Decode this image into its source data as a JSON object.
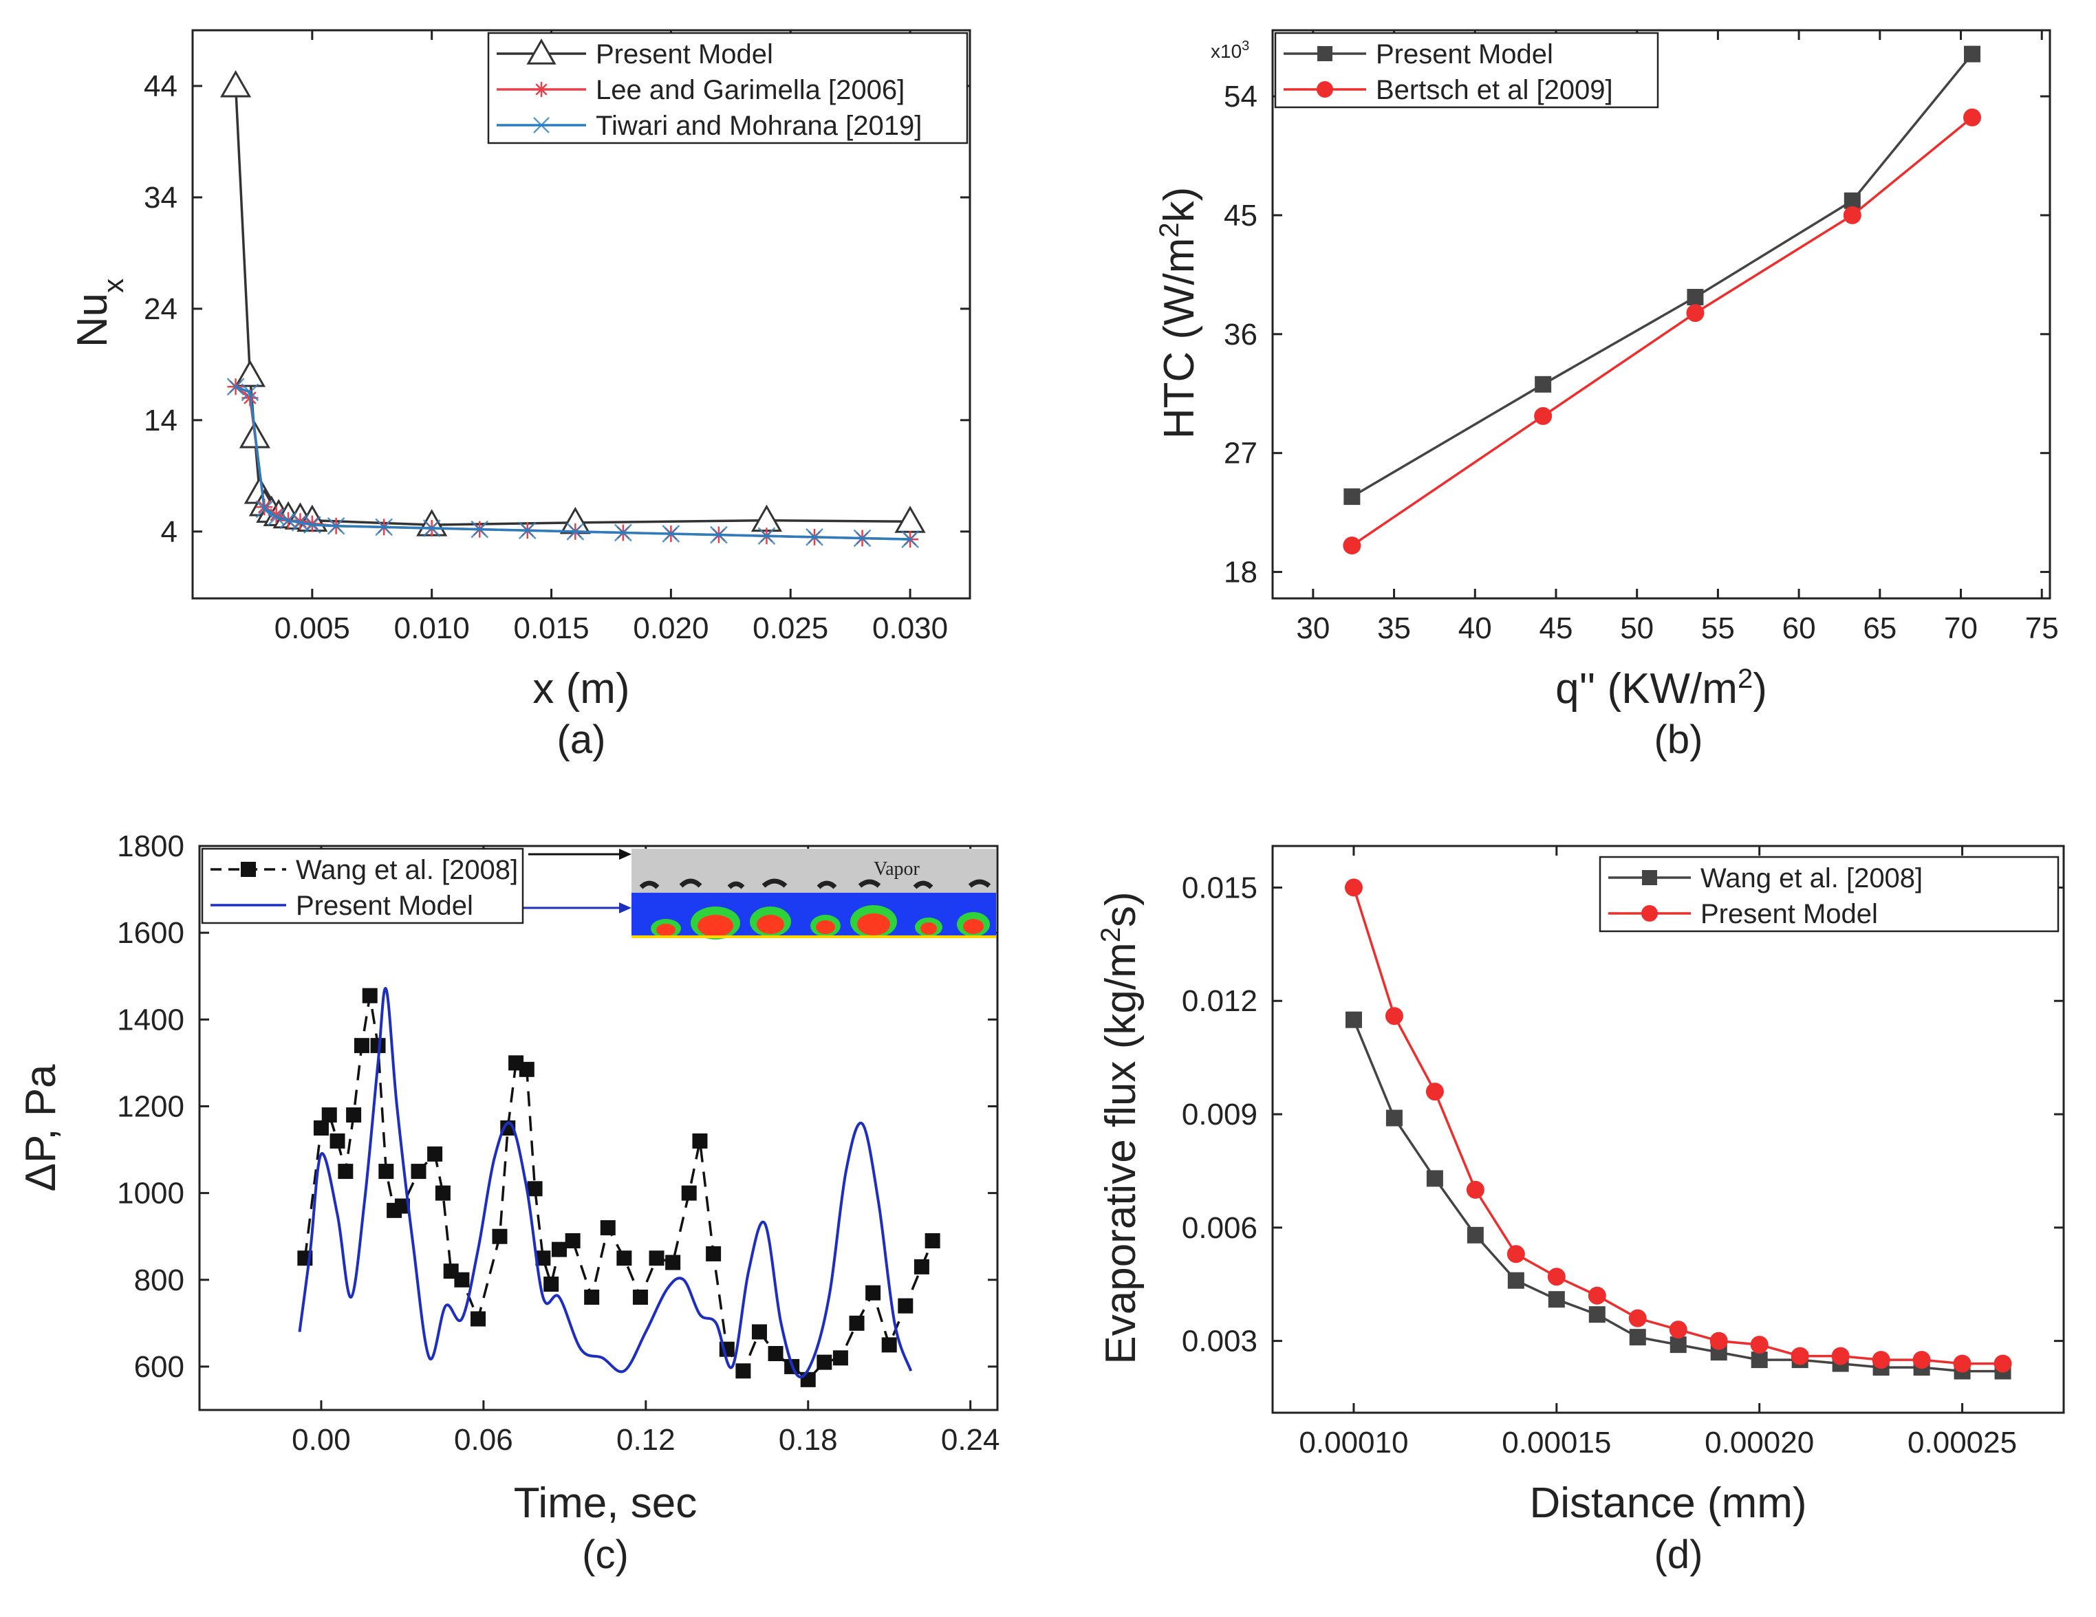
{
  "chart_data": [
    {
      "id": "a",
      "type": "line",
      "panel_label": "(a)",
      "xlabel": "x (m)",
      "ylabel": "Nu",
      "ylabel_sub": "x",
      "xlim": [
        0.0,
        0.0325
      ],
      "ylim": [
        -2,
        49
      ],
      "xticks": [
        0.005,
        0.01,
        0.015,
        0.02,
        0.025,
        0.03
      ],
      "xtick_labels": [
        "0.005",
        "0.010",
        "0.015",
        "0.020",
        "0.025",
        "0.030"
      ],
      "yticks": [
        4,
        14,
        24,
        34,
        44
      ],
      "ytick_labels": [
        "4",
        "14",
        "24",
        "34",
        "44"
      ],
      "legend_position": "top-right",
      "series": [
        {
          "name": "Present Model",
          "color": "#333333",
          "marker": "triangle-open",
          "x": [
            0.0018,
            0.0024,
            0.0026,
            0.0028,
            0.003,
            0.0033,
            0.0036,
            0.004,
            0.0045,
            0.005,
            0.01,
            0.016,
            0.024,
            0.03
          ],
          "y": [
            44,
            18,
            12.5,
            7.5,
            6.4,
            5.8,
            5.5,
            5.3,
            5.2,
            5.0,
            4.6,
            4.8,
            5.0,
            4.9
          ]
        },
        {
          "name": "Lee and Garimella [2006]",
          "color": "#e8404a",
          "marker": "asterisk",
          "x": [
            0.0018,
            0.0024,
            0.003,
            0.0035,
            0.004,
            0.0045,
            0.005,
            0.006,
            0.008,
            0.01,
            0.012,
            0.014,
            0.016,
            0.018,
            0.02,
            0.022,
            0.024,
            0.026,
            0.028,
            0.03
          ],
          "y": [
            17,
            16,
            6.2,
            5.5,
            5.0,
            4.9,
            4.7,
            4.5,
            4.4,
            4.3,
            4.2,
            4.1,
            4.0,
            3.9,
            3.8,
            3.7,
            3.6,
            3.5,
            3.4,
            3.3
          ]
        },
        {
          "name": "Tiwari and Mohrana [2019]",
          "color": "#2a7ec0",
          "marker": "cross",
          "x": [
            0.0018,
            0.0024,
            0.003,
            0.0035,
            0.004,
            0.0045,
            0.005,
            0.006,
            0.008,
            0.01,
            0.012,
            0.014,
            0.016,
            0.018,
            0.02,
            0.022,
            0.024,
            0.026,
            0.028,
            0.03
          ],
          "y": [
            17,
            16.5,
            6.0,
            5.3,
            5.0,
            4.8,
            4.6,
            4.5,
            4.4,
            4.3,
            4.2,
            4.1,
            4.0,
            3.9,
            3.8,
            3.7,
            3.6,
            3.5,
            3.4,
            3.3
          ]
        }
      ]
    },
    {
      "id": "b",
      "type": "line",
      "panel_label": "(b)",
      "xlabel": "q'' (KW/m",
      "xlabel_sup": "2",
      "xlabel_end": ")",
      "ylabel": "HTC (W/m",
      "ylabel_sup": "2",
      "ylabel_end": "k)",
      "multiplier": "x10",
      "multiplier_sup": "3",
      "xlim": [
        27.5,
        75.5
      ],
      "ylim": [
        16,
        59
      ],
      "xticks": [
        30,
        35,
        40,
        45,
        50,
        55,
        60,
        65,
        70,
        75
      ],
      "xtick_labels": [
        "30",
        "35",
        "40",
        "45",
        "50",
        "55",
        "60",
        "65",
        "70",
        "75"
      ],
      "yticks": [
        18,
        27,
        36,
        45,
        54
      ],
      "ytick_labels": [
        "18",
        "27",
        "36",
        "45",
        "54"
      ],
      "legend_position": "top-left",
      "series": [
        {
          "name": "Present Model",
          "color": "#444444",
          "marker": "square",
          "x": [
            32.4,
            44.2,
            53.6,
            63.3,
            70.7
          ],
          "y": [
            23.7,
            32.2,
            38.8,
            46.1,
            57.2
          ]
        },
        {
          "name": "Bertsch et al [2009]",
          "color": "#ee2d2d",
          "marker": "circle",
          "x": [
            32.4,
            44.2,
            53.6,
            63.3,
            70.7
          ],
          "y": [
            20.0,
            29.8,
            37.6,
            45.0,
            52.4
          ]
        }
      ]
    },
    {
      "id": "c",
      "type": "line",
      "panel_label": "(c)",
      "xlabel": "Time, sec",
      "ylabel": "ΔP, Pa",
      "xlim": [
        -0.045,
        0.25
      ],
      "ylim": [
        500,
        1800
      ],
      "xticks": [
        0.0,
        0.06,
        0.12,
        0.18,
        0.24
      ],
      "xtick_labels": [
        "0.00",
        "0.06",
        "0.12",
        "0.18",
        "0.24"
      ],
      "yticks": [
        600,
        800,
        1000,
        1200,
        1400,
        1600,
        1800
      ],
      "ytick_labels": [
        "600",
        "800",
        "1000",
        "1200",
        "1400",
        "1600",
        "1800"
      ],
      "legend_position": "top-left",
      "inset_label": "Vapor",
      "series": [
        {
          "name": "Wang et al. [2008]",
          "color": "#111111",
          "marker": "square",
          "style": "dashed",
          "x": [
            -0.006,
            0.0,
            0.003,
            0.006,
            0.009,
            0.012,
            0.015,
            0.018,
            0.021,
            0.024,
            0.027,
            0.03,
            0.036,
            0.042,
            0.045,
            0.048,
            0.052,
            0.058,
            0.066,
            0.069,
            0.072,
            0.076,
            0.079,
            0.082,
            0.085,
            0.088,
            0.093,
            0.1,
            0.106,
            0.112,
            0.118,
            0.124,
            0.13,
            0.136,
            0.14,
            0.145,
            0.15,
            0.156,
            0.162,
            0.168,
            0.174,
            0.18,
            0.186,
            0.192,
            0.198,
            0.204,
            0.21,
            0.216,
            0.222,
            0.226
          ],
          "y": [
            850,
            1150,
            1180,
            1120,
            1050,
            1180,
            1340,
            1455,
            1340,
            1050,
            960,
            970,
            1050,
            1090,
            1000,
            820,
            800,
            710,
            900,
            1150,
            1300,
            1285,
            1010,
            850,
            790,
            870,
            890,
            760,
            920,
            850,
            760,
            850,
            840,
            1000,
            1120,
            860,
            640,
            590,
            680,
            630,
            600,
            570,
            610,
            620,
            700,
            770,
            650,
            740,
            830,
            890
          ]
        },
        {
          "name": "Present Model",
          "color": "#1e2fc0",
          "marker": "none",
          "style": "solid",
          "x": [
            -0.008,
            -0.004,
            0.0,
            0.006,
            0.011,
            0.016,
            0.021,
            0.024,
            0.028,
            0.034,
            0.04,
            0.046,
            0.052,
            0.058,
            0.064,
            0.07,
            0.076,
            0.082,
            0.088,
            0.096,
            0.104,
            0.112,
            0.12,
            0.128,
            0.134,
            0.14,
            0.146,
            0.152,
            0.158,
            0.164,
            0.17,
            0.176,
            0.182,
            0.188,
            0.194,
            0.2,
            0.206,
            0.212,
            0.218
          ],
          "y": [
            680,
            870,
            1090,
            950,
            760,
            980,
            1300,
            1470,
            1200,
            880,
            620,
            740,
            710,
            870,
            1080,
            1160,
            1010,
            760,
            760,
            640,
            620,
            590,
            680,
            780,
            800,
            720,
            700,
            600,
            820,
            930,
            700,
            580,
            620,
            770,
            1050,
            1160,
            980,
            700,
            590
          ]
        }
      ]
    },
    {
      "id": "d",
      "type": "line",
      "panel_label": "(d)",
      "xlabel": "Distance (mm)",
      "ylabel": "Evaporative flux (kg/m",
      "ylabel_sup": "2",
      "ylabel_end": "s)",
      "xlim": [
        8e-05,
        0.000275
      ],
      "ylim": [
        0.0011,
        0.0161
      ],
      "xticks": [
        0.0001,
        0.00015,
        0.0002,
        0.00025
      ],
      "xtick_labels": [
        "0.00010",
        "0.00015",
        "0.00020",
        "0.00025"
      ],
      "yticks": [
        0.003,
        0.006,
        0.009,
        0.012,
        0.015
      ],
      "ytick_labels": [
        "0.003",
        "0.006",
        "0.009",
        "0.012",
        "0.015"
      ],
      "legend_position": "top-right",
      "series": [
        {
          "name": "Wang et al. [2008]",
          "color": "#444444",
          "marker": "square",
          "x": [
            0.0001,
            0.00011,
            0.00012,
            0.00013,
            0.00014,
            0.00015,
            0.00016,
            0.00017,
            0.00018,
            0.00019,
            0.0002,
            0.00021,
            0.00022,
            0.00023,
            0.00024,
            0.00025,
            0.00026
          ],
          "y": [
            0.0115,
            0.0089,
            0.0073,
            0.0058,
            0.0046,
            0.0041,
            0.0037,
            0.0031,
            0.0029,
            0.0027,
            0.0025,
            0.0025,
            0.0024,
            0.0023,
            0.0023,
            0.0022,
            0.0022
          ]
        },
        {
          "name": "Present Model",
          "color": "#ee2d2d",
          "marker": "circle",
          "x": [
            0.0001,
            0.00011,
            0.00012,
            0.00013,
            0.00014,
            0.00015,
            0.00016,
            0.00017,
            0.00018,
            0.00019,
            0.0002,
            0.00021,
            0.00022,
            0.00023,
            0.00024,
            0.00025,
            0.00026
          ],
          "y": [
            0.015,
            0.0116,
            0.0096,
            0.007,
            0.0053,
            0.0047,
            0.0042,
            0.0036,
            0.0033,
            0.003,
            0.0029,
            0.0026,
            0.0026,
            0.0025,
            0.0025,
            0.0024,
            0.0024
          ]
        }
      ]
    }
  ]
}
